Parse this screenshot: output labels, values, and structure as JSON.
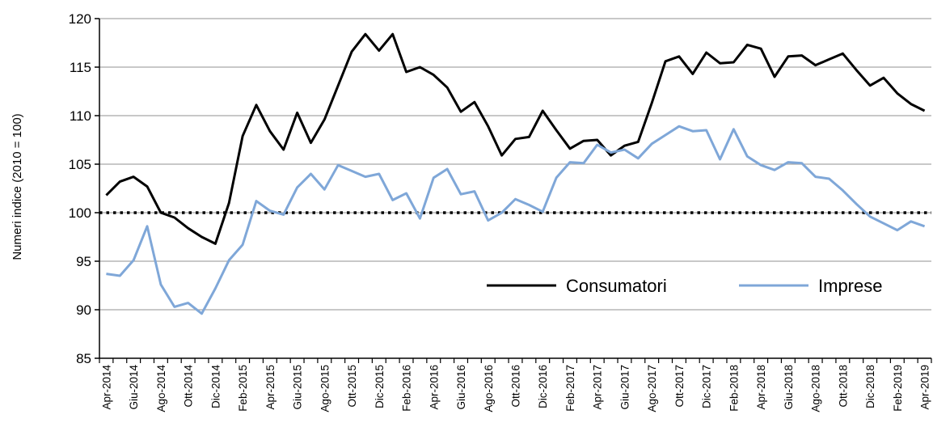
{
  "chart_data": {
    "type": "line",
    "ylabel": "Numeri indice (2010 = 100)",
    "xlabel": "",
    "ylim": [
      85,
      120
    ],
    "yticks": [
      85,
      90,
      95,
      100,
      105,
      110,
      115,
      120
    ],
    "reference_line": 100,
    "grid": "horizontal",
    "legend_position": "bottom-right",
    "x": [
      "Apr-2014",
      "Mag-2014",
      "Giu-2014",
      "Lug-2014",
      "Ago-2014",
      "Set-2014",
      "Ott-2014",
      "Nov-2014",
      "Dic-2014",
      "Gen-2015",
      "Feb-2015",
      "Mar-2015",
      "Apr-2015",
      "Mag-2015",
      "Giu-2015",
      "Lug-2015",
      "Ago-2015",
      "Set-2015",
      "Ott-2015",
      "Nov-2015",
      "Dic-2015",
      "Gen-2016",
      "Feb-2016",
      "Mar-2016",
      "Apr-2016",
      "Mag-2016",
      "Giu-2016",
      "Lug-2016",
      "Ago-2016",
      "Set-2016",
      "Ott-2016",
      "Nov-2016",
      "Dic-2016",
      "Gen-2017",
      "Feb-2017",
      "Mar-2017",
      "Apr-2017",
      "Mag-2017",
      "Giu-2017",
      "Lug-2017",
      "Ago-2017",
      "Set-2017",
      "Ott-2017",
      "Nov-2017",
      "Dic-2017",
      "Gen-2018",
      "Feb-2018",
      "Mar-2018",
      "Apr-2018",
      "Mag-2018",
      "Giu-2018",
      "Lug-2018",
      "Ago-2018",
      "Set-2018",
      "Ott-2018",
      "Nov-2018",
      "Dic-2018",
      "Gen-2019",
      "Feb-2019",
      "Mar-2019",
      "Apr-2019"
    ],
    "tick_labels": [
      "Apr-2014",
      "Giu-2014",
      "Ago-2014",
      "Ott-2014",
      "Dic-2014",
      "Feb-2015",
      "Apr-2015",
      "Giu-2015",
      "Ago-2015",
      "Ott-2015",
      "Dic-2015",
      "Feb-2016",
      "Apr-2016",
      "Giu-2016",
      "Ago-2016",
      "Ott-2016",
      "Dic-2016",
      "Feb-2017",
      "Apr-2017",
      "Giu-2017",
      "Ago-2017",
      "Ott-2017",
      "Dic-2017",
      "Feb-2018",
      "Apr-2018",
      "Giu-2018",
      "Ago-2018",
      "Ott-2018",
      "Dic-2018",
      "Feb-2019",
      "Apr-2019"
    ],
    "series": [
      {
        "name": "Consumatori",
        "color": "#000000",
        "values": [
          101.8,
          103.2,
          103.7,
          102.7,
          100.0,
          99.5,
          98.4,
          97.5,
          96.8,
          101.0,
          107.9,
          111.1,
          108.4,
          106.5,
          110.3,
          107.2,
          109.6,
          113.1,
          116.6,
          118.4,
          116.7,
          118.4,
          114.5,
          115.0,
          114.2,
          112.9,
          110.4,
          111.4,
          108.9,
          105.9,
          107.6,
          107.8,
          110.5,
          108.5,
          106.6,
          107.4,
          107.5,
          105.9,
          106.9,
          107.3,
          111.3,
          115.6,
          116.1,
          114.3,
          116.5,
          115.4,
          115.5,
          117.3,
          116.9,
          114.0,
          116.1,
          116.2,
          115.2,
          115.8,
          116.4,
          114.7,
          113.1,
          113.9,
          112.3,
          111.2,
          110.5
        ]
      },
      {
        "name": "Imprese",
        "color": "#7fa7d8",
        "values": [
          93.7,
          93.5,
          95.1,
          98.6,
          92.6,
          90.3,
          90.7,
          89.6,
          92.2,
          95.1,
          96.7,
          101.2,
          100.2,
          99.8,
          102.6,
          104.0,
          102.4,
          104.9,
          104.3,
          103.7,
          104.0,
          101.3,
          102.0,
          99.4,
          103.6,
          104.5,
          101.9,
          102.2,
          99.2,
          100.0,
          101.4,
          100.8,
          100.1,
          103.6,
          105.2,
          105.1,
          107.0,
          106.2,
          106.5,
          105.6,
          107.1,
          108.0,
          108.9,
          108.4,
          108.5,
          105.5,
          108.6,
          105.8,
          104.9,
          104.4,
          105.2,
          105.1,
          103.7,
          103.5,
          102.3,
          100.9,
          99.6,
          98.9,
          98.2,
          99.1,
          98.6
        ]
      }
    ]
  }
}
